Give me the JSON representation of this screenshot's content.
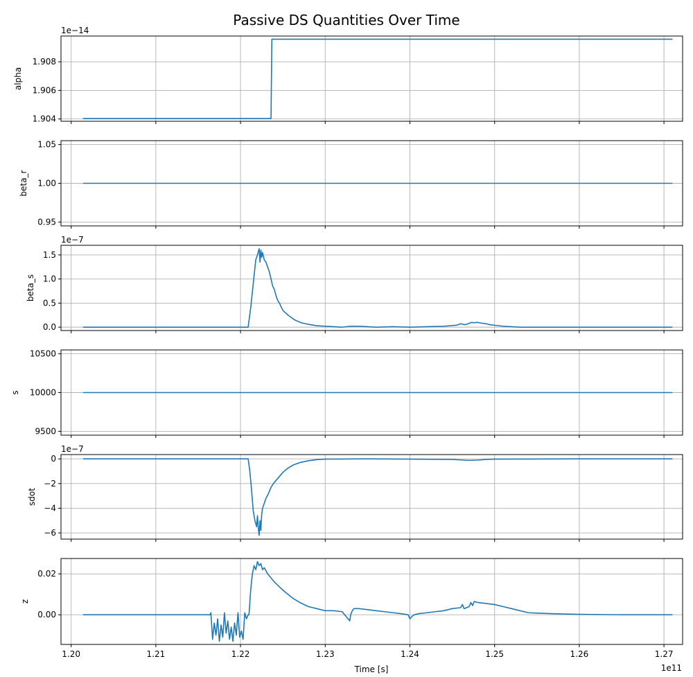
{
  "figure": {
    "title": "Passive DS Quantities Over Time",
    "xlabel": "Time [s]",
    "x_offset_label": "1e11"
  },
  "chart_data": [
    {
      "type": "line",
      "ylabel": "alpha",
      "y_offset_label": "1e−14",
      "xlim": [
        1.1988,
        1.2722
      ],
      "ylim": [
        1.90384,
        1.9098
      ],
      "x_ticks": [
        1.2,
        1.21,
        1.22,
        1.23,
        1.24,
        1.25,
        1.26,
        1.27
      ],
      "y_ticks": [
        1.904,
        1.906,
        1.908
      ],
      "y_tick_labels": [
        "1.904",
        "1.906",
        "1.908"
      ],
      "grid": true,
      "series": [
        {
          "x": [
            1.2014,
            1.2236,
            1.2237,
            1.271
          ],
          "y": [
            1.90403,
            1.90403,
            1.90958,
            1.90958
          ]
        }
      ]
    },
    {
      "type": "line",
      "ylabel": "beta_r",
      "y_offset_label": "",
      "xlim": [
        1.1988,
        1.2722
      ],
      "ylim": [
        0.945,
        1.055
      ],
      "x_ticks": [
        1.2,
        1.21,
        1.22,
        1.23,
        1.24,
        1.25,
        1.26,
        1.27
      ],
      "y_ticks": [
        0.95,
        1.0,
        1.05
      ],
      "y_tick_labels": [
        "0.95",
        "1.00",
        "1.05"
      ],
      "grid": true,
      "series": [
        {
          "x": [
            1.2014,
            1.271
          ],
          "y": [
            1.0,
            1.0
          ]
        }
      ]
    },
    {
      "type": "line",
      "ylabel": "beta_s",
      "y_offset_label": "1e−7",
      "xlim": [
        1.1988,
        1.2722
      ],
      "ylim": [
        -0.07,
        1.7
      ],
      "x_ticks": [
        1.2,
        1.21,
        1.22,
        1.23,
        1.24,
        1.25,
        1.26,
        1.27
      ],
      "y_ticks": [
        0.0,
        0.5,
        1.0,
        1.5
      ],
      "y_tick_labels": [
        "0.0",
        "0.5",
        "1.0",
        "1.5"
      ],
      "grid": true,
      "series": [
        {
          "x": [
            1.2014,
            1.2205,
            1.2209,
            1.2212,
            1.2215,
            1.2218,
            1.222,
            1.2222,
            1.2223,
            1.2224,
            1.2225,
            1.2226,
            1.2228,
            1.223,
            1.2232,
            1.2234,
            1.2236,
            1.2238,
            1.224,
            1.2242,
            1.2244,
            1.2246,
            1.2248,
            1.225,
            1.2253,
            1.2256,
            1.226,
            1.2264,
            1.2268,
            1.2272,
            1.2277,
            1.2283,
            1.229,
            1.23,
            1.231,
            1.232,
            1.233,
            1.234,
            1.235,
            1.236,
            1.238,
            1.24,
            1.242,
            1.244,
            1.2455,
            1.246,
            1.2465,
            1.247,
            1.2473,
            1.2476,
            1.2479,
            1.2482,
            1.2486,
            1.249,
            1.2495,
            1.25,
            1.251,
            1.252,
            1.253,
            1.254,
            1.256,
            1.26,
            1.265,
            1.271
          ],
          "y": [
            0.0,
            0.0,
            0.0,
            0.4,
            0.9,
            1.4,
            1.5,
            1.63,
            1.35,
            1.6,
            1.45,
            1.55,
            1.4,
            1.35,
            1.25,
            1.15,
            1.0,
            0.85,
            0.78,
            0.65,
            0.55,
            0.5,
            0.42,
            0.35,
            0.3,
            0.25,
            0.2,
            0.15,
            0.12,
            0.09,
            0.07,
            0.05,
            0.03,
            0.02,
            0.01,
            0.0,
            0.02,
            0.02,
            0.01,
            0.0,
            0.01,
            0.0,
            0.01,
            0.02,
            0.04,
            0.07,
            0.05,
            0.08,
            0.1,
            0.09,
            0.1,
            0.09,
            0.08,
            0.07,
            0.05,
            0.04,
            0.02,
            0.01,
            0.0,
            0.0,
            0.0,
            0.0,
            0.0,
            0.0
          ]
        }
      ]
    },
    {
      "type": "line",
      "ylabel": "s",
      "y_offset_label": "",
      "xlim": [
        1.1988,
        1.2722
      ],
      "ylim": [
        9450,
        10550
      ],
      "x_ticks": [
        1.2,
        1.21,
        1.22,
        1.23,
        1.24,
        1.25,
        1.26,
        1.27
      ],
      "y_ticks": [
        9500,
        10000,
        10500
      ],
      "y_tick_labels": [
        "9500",
        "10000",
        "10500"
      ],
      "grid": true,
      "series": [
        {
          "x": [
            1.2014,
            1.271
          ],
          "y": [
            10000,
            10000
          ]
        }
      ]
    },
    {
      "type": "line",
      "ylabel": "sdot",
      "y_offset_label": "1e−7",
      "xlim": [
        1.1988,
        1.2722
      ],
      "ylim": [
        -6.5,
        0.35
      ],
      "x_ticks": [
        1.2,
        1.21,
        1.22,
        1.23,
        1.24,
        1.25,
        1.26,
        1.27
      ],
      "y_ticks": [
        -6,
        -4,
        -2,
        0
      ],
      "y_tick_labels": [
        "−6",
        "−4",
        "−2",
        "0"
      ],
      "grid": true,
      "series": [
        {
          "x": [
            1.2014,
            1.2209,
            1.2211,
            1.2213,
            1.2215,
            1.2217,
            1.2219,
            1.222,
            1.2221,
            1.2222,
            1.2223,
            1.2224,
            1.2225,
            1.2226,
            1.2228,
            1.223,
            1.2233,
            1.2236,
            1.224,
            1.2245,
            1.225,
            1.2255,
            1.2262,
            1.227,
            1.228,
            1.229,
            1.23,
            1.232,
            1.235,
            1.24,
            1.245,
            1.247,
            1.248,
            1.249,
            1.25,
            1.26,
            1.271
          ],
          "y": [
            0.0,
            0.0,
            -1.0,
            -2.5,
            -4.2,
            -5.0,
            -5.5,
            -4.6,
            -5.6,
            -6.2,
            -5.0,
            -5.8,
            -4.5,
            -4.0,
            -3.6,
            -3.2,
            -2.8,
            -2.3,
            -1.9,
            -1.5,
            -1.1,
            -0.8,
            -0.5,
            -0.3,
            -0.15,
            -0.06,
            -0.02,
            -0.01,
            0.0,
            -0.02,
            -0.05,
            -0.12,
            -0.1,
            -0.05,
            -0.02,
            0.0,
            0.0
          ]
        }
      ]
    },
    {
      "type": "line",
      "ylabel": "z",
      "y_offset_label": "",
      "xlim": [
        1.1988,
        1.2722
      ],
      "ylim": [
        -0.0145,
        0.0275
      ],
      "x_ticks": [
        1.2,
        1.21,
        1.22,
        1.23,
        1.24,
        1.25,
        1.26,
        1.27
      ],
      "x_tick_labels": [
        "1.20",
        "1.21",
        "1.22",
        "1.23",
        "1.24",
        "1.25",
        "1.26",
        "1.27"
      ],
      "y_ticks": [
        0.0,
        0.02
      ],
      "y_tick_labels": [
        "0.00",
        "0.02"
      ],
      "grid": true,
      "series": [
        {
          "x": [
            1.2014,
            1.2164,
            1.2165,
            1.2167,
            1.2169,
            1.2171,
            1.2173,
            1.2175,
            1.2177,
            1.2179,
            1.2181,
            1.2183,
            1.2185,
            1.2187,
            1.2189,
            1.2191,
            1.2193,
            1.2195,
            1.2197,
            1.2199,
            1.2201,
            1.2203,
            1.2205,
            1.2207,
            1.2209,
            1.221,
            1.2212,
            1.2214,
            1.2216,
            1.2218,
            1.222,
            1.2222,
            1.2224,
            1.2226,
            1.2228,
            1.2232,
            1.2236,
            1.224,
            1.2245,
            1.225,
            1.2256,
            1.2262,
            1.227,
            1.228,
            1.229,
            1.23,
            1.231,
            1.232,
            1.2329,
            1.233,
            1.2332,
            1.2334,
            1.234,
            1.235,
            1.236,
            1.237,
            1.238,
            1.239,
            1.2398,
            1.24,
            1.2402,
            1.2405,
            1.241,
            1.242,
            1.243,
            1.244,
            1.245,
            1.246,
            1.2462,
            1.2464,
            1.247,
            1.2472,
            1.2474,
            1.2476,
            1.248,
            1.249,
            1.25,
            1.251,
            1.252,
            1.253,
            1.254,
            1.255,
            1.257,
            1.26,
            1.265,
            1.271
          ],
          "y": [
            0.0,
            0.0,
            0.001,
            -0.012,
            -0.004,
            -0.01,
            -0.002,
            -0.013,
            -0.005,
            -0.011,
            0.001,
            -0.009,
            -0.003,
            -0.012,
            -0.006,
            -0.013,
            -0.004,
            -0.01,
            0.001,
            -0.011,
            -0.008,
            -0.012,
            0.001,
            -0.002,
            0.0,
            0.0,
            0.012,
            0.02,
            0.024,
            0.022,
            0.026,
            0.024,
            0.025,
            0.022,
            0.023,
            0.02,
            0.018,
            0.016,
            0.014,
            0.012,
            0.01,
            0.008,
            0.006,
            0.004,
            0.003,
            0.002,
            0.002,
            0.0015,
            -0.003,
            0.0,
            0.002,
            0.003,
            0.003,
            0.0025,
            0.002,
            0.0015,
            0.001,
            0.0005,
            0.0,
            -0.002,
            -0.001,
            0.0,
            0.0005,
            0.001,
            0.0015,
            0.002,
            0.003,
            0.0035,
            0.005,
            0.003,
            0.004,
            0.006,
            0.0045,
            0.0065,
            0.006,
            0.0055,
            0.005,
            0.004,
            0.003,
            0.002,
            0.001,
            0.0008,
            0.0005,
            0.0002,
            0.0,
            0.0
          ]
        }
      ]
    }
  ]
}
